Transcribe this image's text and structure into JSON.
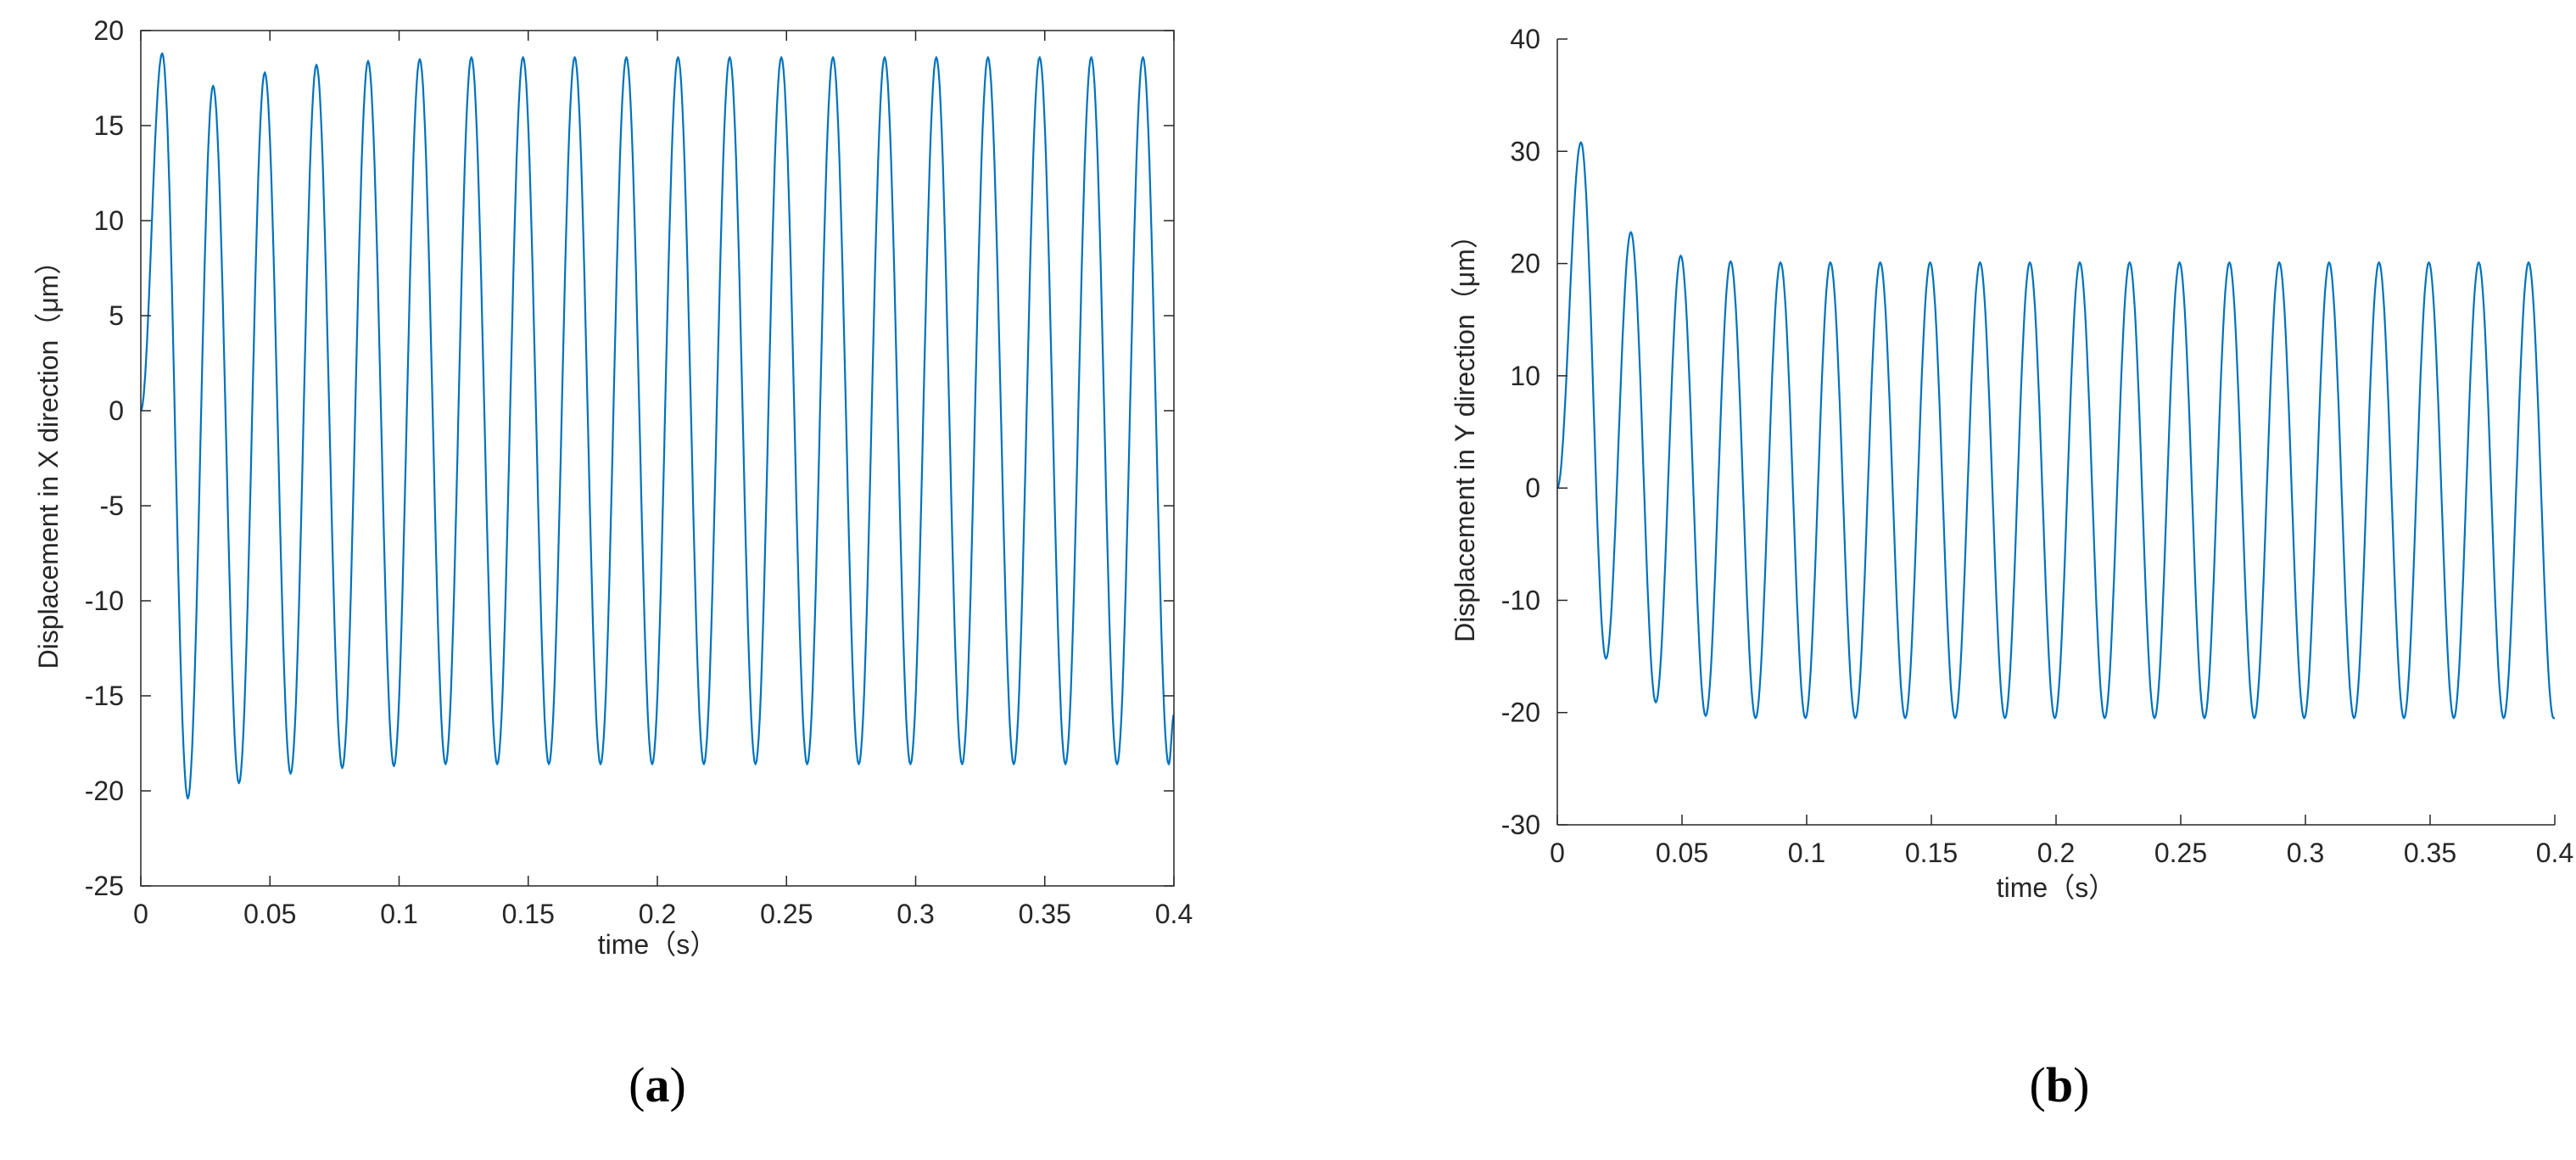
{
  "figure": {
    "panels": [
      {
        "letter": "a",
        "open": "(",
        "close": ")"
      },
      {
        "letter": "b",
        "open": "(",
        "close": ")"
      }
    ]
  },
  "chart_data": [
    {
      "type": "line",
      "panel": "(a)",
      "title": "",
      "xlabel": "time（s）",
      "ylabel": "Displacement in X direction（μm）",
      "xlim": [
        0,
        0.4
      ],
      "ylim": [
        -25,
        20
      ],
      "xticks": [
        0,
        0.05,
        0.1,
        0.15,
        0.2,
        0.25,
        0.3,
        0.35,
        0.4
      ],
      "xtick_labels": [
        "0",
        "0.05",
        "0.1",
        "0.15",
        "0.2",
        "0.25",
        "0.3",
        "0.35",
        "0.4"
      ],
      "yticks": [
        -25,
        -20,
        -15,
        -10,
        -5,
        0,
        5,
        10,
        15,
        20
      ],
      "ytick_labels": [
        "-25",
        "-20",
        "-15",
        "-10",
        "-5",
        "0",
        "5",
        "10",
        "15",
        "20"
      ],
      "grid": false,
      "color": "#0072BD",
      "series": [
        {
          "x": [
            0,
            0.0083,
            0.0182,
            0.028,
            0.038,
            0.048,
            0.058,
            0.068,
            0.078,
            0.088,
            0.098,
            0.108,
            0.118,
            0.128,
            0.138,
            0.148,
            0.158,
            0.168,
            0.178,
            0.188,
            0.198,
            0.208,
            0.218,
            0.228,
            0.238,
            0.248,
            0.258,
            0.268,
            0.278,
            0.288,
            0.298,
            0.308,
            0.318,
            0.328,
            0.338,
            0.348,
            0.358,
            0.368,
            0.378,
            0.388,
            0.398,
            0.4
          ],
          "y": [
            0,
            18.8,
            -20.4,
            17.1,
            -19.6,
            17.8,
            -19.1,
            18.2,
            -18.8,
            18.4,
            -18.7,
            18.5,
            -18.6,
            18.6,
            -18.6,
            18.6,
            -18.6,
            18.6,
            -18.6,
            18.6,
            -18.6,
            18.6,
            -18.6,
            18.6,
            -18.6,
            18.6,
            -18.6,
            18.6,
            -18.6,
            18.6,
            -18.6,
            18.6,
            -18.6,
            18.6,
            -18.6,
            18.6,
            -18.6,
            18.6,
            -18.6,
            18.6,
            -18.6,
            -16
          ]
        }
      ]
    },
    {
      "type": "line",
      "panel": "(b)",
      "title": "",
      "xlabel": "time（s）",
      "ylabel": "Displacement in Y direction（μm）",
      "xlim": [
        0,
        0.4
      ],
      "ylim": [
        -30,
        40
      ],
      "xticks": [
        0,
        0.05,
        0.1,
        0.15,
        0.2,
        0.25,
        0.3,
        0.35,
        0.4
      ],
      "xtick_labels": [
        "0",
        "0.05",
        "0.1",
        "0.15",
        "0.2",
        "0.25",
        "0.3",
        "0.35",
        "0.4"
      ],
      "yticks": [
        -30,
        -20,
        -10,
        0,
        10,
        20,
        30,
        40
      ],
      "ytick_labels": [
        "-30",
        "-20",
        "-10",
        "0",
        "10",
        "20",
        "30",
        "40"
      ],
      "grid": false,
      "color": "#0072BD",
      "series": [
        {
          "x": [
            0,
            0.0095,
            0.0195,
            0.0295,
            0.0395,
            0.0495,
            0.0595,
            0.0695,
            0.0795,
            0.0895,
            0.0995,
            0.1095,
            0.1195,
            0.1295,
            0.1395,
            0.1495,
            0.1595,
            0.1695,
            0.1795,
            0.1895,
            0.1995,
            0.2095,
            0.2195,
            0.2295,
            0.2395,
            0.2495,
            0.2595,
            0.2695,
            0.2795,
            0.2895,
            0.2995,
            0.3095,
            0.3195,
            0.3295,
            0.3395,
            0.3495,
            0.3595,
            0.3695,
            0.3795,
            0.3895,
            0.3995,
            0.4
          ],
          "y": [
            0,
            30.8,
            -15.2,
            22.8,
            -19.1,
            20.7,
            -20.3,
            20.2,
            -20.5,
            20.1,
            -20.5,
            20.1,
            -20.5,
            20.1,
            -20.5,
            20.1,
            -20.5,
            20.1,
            -20.5,
            20.1,
            -20.5,
            20.1,
            -20.5,
            20.1,
            -20.5,
            20.1,
            -20.5,
            20.1,
            -20.5,
            20.1,
            -20.5,
            20.1,
            -20.5,
            20.1,
            -20.5,
            20.1,
            -20.5,
            20.1,
            -20.5,
            20.1,
            -20.5,
            -20.5
          ]
        }
      ]
    }
  ]
}
